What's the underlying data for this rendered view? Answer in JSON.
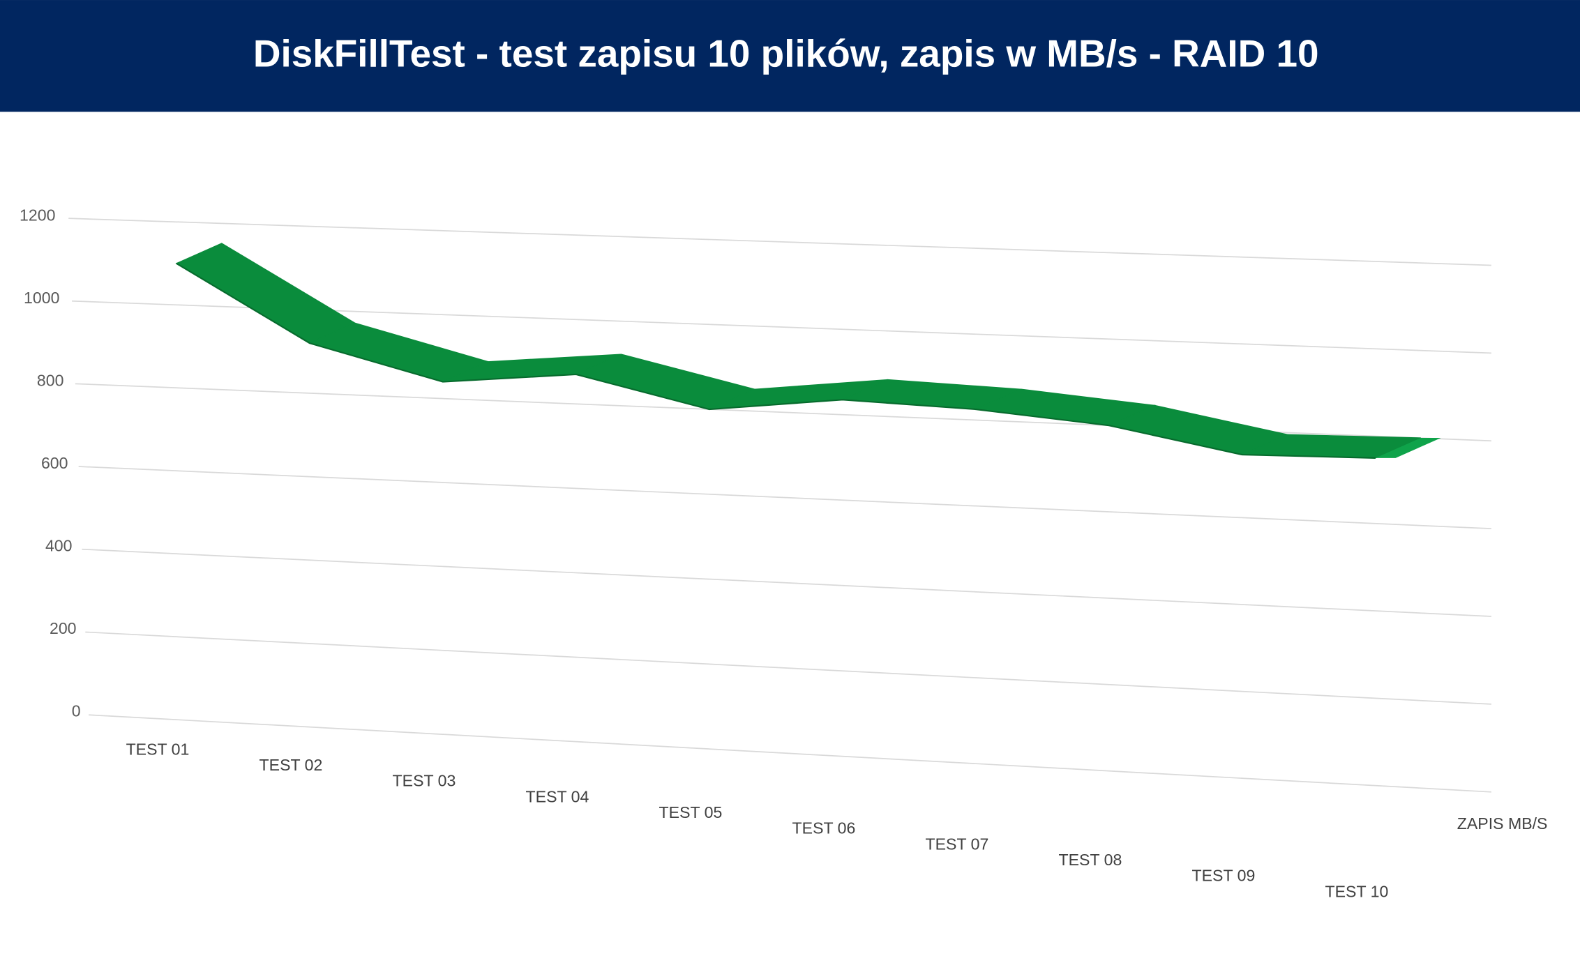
{
  "chart_data": {
    "type": "line3d",
    "title": "DiskFillTest - test zapisu 10 plików, zapis w MB/s - RAID 10",
    "categories": [
      "TEST 01",
      "TEST 02",
      "TEST 03",
      "TEST 04",
      "TEST 05",
      "TEST 06",
      "TEST 07",
      "TEST 08",
      "TEST 09",
      "TEST 10"
    ],
    "series": [
      {
        "name": "ZAPIS MB/S",
        "color": "#0a8c3c",
        "values": [
          1100,
          920,
          840,
          870,
          800,
          835,
          825,
          800,
          745,
          750
        ]
      }
    ],
    "ylim": [
      0,
      1200
    ],
    "yticks": [
      0,
      200,
      400,
      600,
      800,
      1000,
      1200
    ],
    "grid": true
  }
}
